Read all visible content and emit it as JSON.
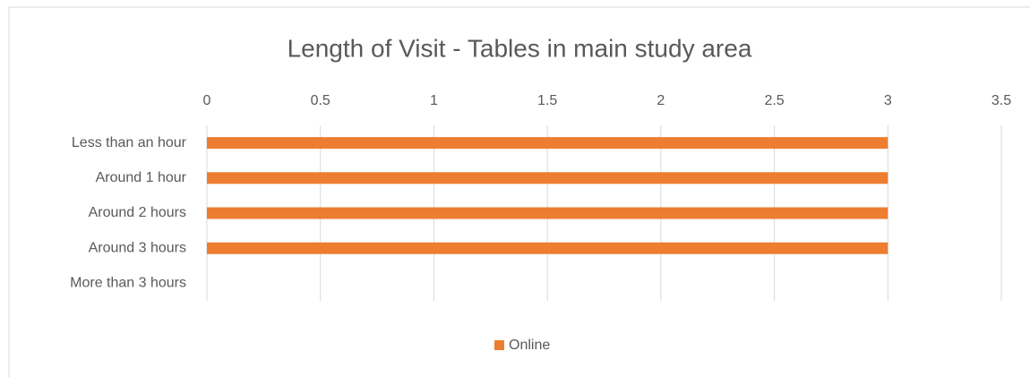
{
  "chart_data": {
    "type": "bar",
    "orientation": "horizontal",
    "title": "Length of Visit - Tables in main study area",
    "categories": [
      "Less than an hour",
      "Around 1 hour",
      "Around 2 hours",
      "Around 3 hours",
      "More than 3 hours"
    ],
    "series": [
      {
        "name": "Online",
        "color": "#ed7d31",
        "values": [
          3,
          3,
          3,
          3,
          0
        ]
      }
    ],
    "xlim": [
      0,
      3.5
    ],
    "xticks": [
      0,
      0.5,
      1,
      1.5,
      2,
      2.5,
      3,
      3.5
    ],
    "grid": true,
    "legend": "bottom"
  }
}
